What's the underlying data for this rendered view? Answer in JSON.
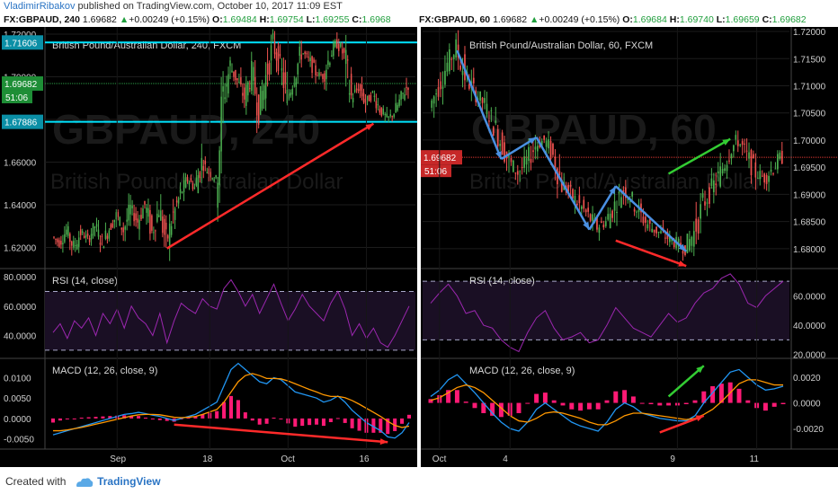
{
  "topbar": {
    "author": "VladimirRibakov",
    "published_text": " published on TradingView.com, October 10, 2017 11:09 EST"
  },
  "footer": {
    "created_with": "Created with",
    "brand": "TradingView"
  },
  "colors": {
    "up_candle": "#4caf50",
    "down_candle": "#ef5350",
    "accent_cyan": "#00e5ff",
    "rsi_line": "#9c27b0",
    "macd_line": "#2196f3",
    "signal_line": "#ff9800",
    "hist_color": "#ff1a75",
    "price_label_red": "#e53935",
    "arrow_red": "#ff2a2a",
    "arrow_green": "#33cc33",
    "arrow_blue": "#4a90e2"
  },
  "left_header": {
    "symbol": "FX:GBPAUD, 240",
    "last": "1.69682",
    "up_arrow": "▲",
    "change": "+0.00249 (+0.15%)",
    "o_label": "O:",
    "o_value": "1.69484",
    "h_label": "H:",
    "h_value": "1.69754",
    "l_label": "L:",
    "l_value": "1.69255",
    "c_label": "C:",
    "c_value": "1.6968"
  },
  "right_header": {
    "symbol": "FX:GBPAUD, 60",
    "last": "1.69682",
    "up_arrow": "▲",
    "change": "+0.00249 (+0.15%)",
    "o_label": "O:",
    "o_value": "1.69684",
    "h_label": "H:",
    "h_value": "1.69740",
    "l_label": "L:",
    "l_value": "1.69659",
    "c_label": "C:",
    "c_value": "1.69682"
  },
  "chart_data": [
    {
      "type": "candlestick",
      "title": "British Pound/Australian Dollar, 240, FXCM",
      "watermark": "GBPAUD, 240",
      "watermark_sub": "British Pound/Australian Dollar",
      "price_axis_ticks": [
        "1.72000",
        "1.70000",
        "1.68000",
        "1.66000",
        "1.64000",
        "1.62000"
      ],
      "ylim": [
        1.6105,
        1.7225
      ],
      "x_ticks": [
        "Sep",
        "18",
        "Oct",
        "16"
      ],
      "horizontal_levels": [
        {
          "value": 1.71606,
          "label": "1.71606",
          "color": "#00e5ff"
        },
        {
          "value": 1.67886,
          "label": "1.67886",
          "color": "#00e5ff"
        }
      ],
      "last_price": {
        "value": 1.69682,
        "label": "1.69682",
        "countdown": "51:06"
      },
      "price_path": [
        1.625,
        1.622,
        1.628,
        1.62,
        1.627,
        1.624,
        1.63,
        1.622,
        1.629,
        1.635,
        1.628,
        1.638,
        1.632,
        1.64,
        1.627,
        1.638,
        1.622,
        1.635,
        1.645,
        1.652,
        1.648,
        1.66,
        1.655,
        1.652,
        1.69,
        1.705,
        1.698,
        1.69,
        1.702,
        1.685,
        1.7,
        1.715,
        1.705,
        1.69,
        1.7,
        1.712,
        1.708,
        1.702,
        1.7,
        1.71,
        1.716,
        1.71,
        1.69,
        1.695,
        1.688,
        1.692,
        1.685,
        1.68,
        1.683,
        1.69,
        1.697
      ],
      "rsi": {
        "label": "RSI (14, close)",
        "ticks": [
          "80.0000",
          "60.0000",
          "40.0000"
        ],
        "ylim": [
          25,
          85
        ],
        "bands": [
          70,
          30
        ],
        "values": [
          42,
          48,
          38,
          50,
          45,
          52,
          40,
          55,
          48,
          58,
          45,
          60,
          52,
          48,
          40,
          55,
          35,
          50,
          62,
          58,
          55,
          65,
          60,
          58,
          72,
          78,
          70,
          60,
          68,
          55,
          65,
          75,
          62,
          50,
          58,
          68,
          60,
          55,
          50,
          62,
          70,
          58,
          40,
          48,
          38,
          45,
          35,
          32,
          40,
          50,
          60
        ]
      },
      "macd": {
        "label": "MACD (12, 26, close, 9)",
        "ticks": [
          "0.0100",
          "0.0050",
          "0.0000",
          "-0.0050"
        ],
        "ylim": [
          -0.0075,
          0.0145
        ],
        "macd_values": [
          -0.004,
          -0.0035,
          -0.003,
          -0.0025,
          -0.002,
          -0.0015,
          -0.001,
          -0.0005,
          0.0,
          0.0005,
          0.001,
          0.0012,
          0.0015,
          0.0012,
          0.0008,
          0.0005,
          0.0,
          -0.0005,
          0.0,
          0.0005,
          0.001,
          0.002,
          0.003,
          0.004,
          0.008,
          0.012,
          0.0135,
          0.012,
          0.0105,
          0.009,
          0.0085,
          0.01,
          0.0095,
          0.008,
          0.0065,
          0.006,
          0.0055,
          0.005,
          0.004,
          0.0045,
          0.0055,
          0.004,
          0.002,
          0.0005,
          -0.001,
          -0.002,
          -0.003,
          -0.0045,
          -0.0048,
          -0.0035,
          -0.001
        ],
        "signal_values": [
          -0.003,
          -0.003,
          -0.0028,
          -0.0025,
          -0.0022,
          -0.0018,
          -0.0014,
          -0.001,
          -0.0006,
          -0.0002,
          0.0002,
          0.0006,
          0.0009,
          0.001,
          0.001,
          0.0009,
          0.0006,
          0.0003,
          0.0002,
          0.0003,
          0.0005,
          0.001,
          0.0016,
          0.0022,
          0.004,
          0.0065,
          0.009,
          0.0105,
          0.011,
          0.0105,
          0.0098,
          0.0098,
          0.0097,
          0.0092,
          0.0085,
          0.0078,
          0.0071,
          0.0065,
          0.0058,
          0.0054,
          0.0054,
          0.0051,
          0.0044,
          0.0035,
          0.0025,
          0.0015,
          0.0005,
          -0.0007,
          -0.0017,
          -0.0022,
          -0.0019
        ]
      },
      "annotations": [
        {
          "type": "arrow",
          "color": "#ff2a2a",
          "from": [
            16,
            1.6195
          ],
          "to": [
            45,
            1.678
          ]
        },
        {
          "type": "arrow",
          "color": "#ff2a2a",
          "pane": "macd",
          "from": [
            17,
            -0.0015
          ],
          "to": [
            47,
            -0.0058
          ]
        }
      ]
    },
    {
      "type": "candlestick",
      "title": "British Pound/Australian Dollar, 60, FXCM",
      "watermark": "GBPAUD, 60",
      "watermark_sub": "British Pound/Australian Dollar",
      "price_axis_ticks": [
        "1.72000",
        "1.71500",
        "1.71000",
        "1.70500",
        "1.70000",
        "1.69500",
        "1.69000",
        "1.68500",
        "1.68000"
      ],
      "ylim": [
        1.6765,
        1.7205
      ],
      "x_ticks": [
        "Oct",
        "4",
        "9",
        "11"
      ],
      "last_price": {
        "value": 1.69682,
        "label": "1.69682",
        "countdown": "51:06"
      },
      "price_path": [
        1.706,
        1.71,
        1.714,
        1.717,
        1.712,
        1.709,
        1.707,
        1.704,
        1.7,
        1.696,
        1.694,
        1.696,
        1.699,
        1.7,
        1.697,
        1.692,
        1.69,
        1.688,
        1.686,
        1.684,
        1.685,
        1.688,
        1.691,
        1.689,
        1.686,
        1.684,
        1.683,
        1.682,
        1.681,
        1.68,
        1.683,
        1.688,
        1.691,
        1.694,
        1.698,
        1.7,
        1.697,
        1.694,
        1.693,
        1.695,
        1.697
      ],
      "rsi": {
        "label": "RSI (14, close)",
        "ticks": [
          "60.0000",
          "40.0000",
          "20.0000"
        ],
        "ylim": [
          18,
          78
        ],
        "bands": [
          70,
          30
        ],
        "values": [
          55,
          62,
          68,
          60,
          48,
          50,
          40,
          38,
          30,
          25,
          22,
          35,
          45,
          50,
          38,
          30,
          32,
          35,
          28,
          30,
          40,
          52,
          45,
          38,
          35,
          32,
          40,
          48,
          42,
          45,
          55,
          62,
          65,
          72,
          75,
          68,
          55,
          52,
          60,
          65,
          70
        ]
      },
      "macd": {
        "label": "MACD (12, 26, close, 9)",
        "ticks": [
          "0.0020",
          "0.0000",
          "-0.0020"
        ],
        "ylim": [
          -0.0036,
          0.0034
        ],
        "macd_values": [
          0.0005,
          0.001,
          0.0018,
          0.0022,
          0.0015,
          0.0008,
          0.0,
          -0.0008,
          -0.0015,
          -0.002,
          -0.0022,
          -0.0015,
          -0.0005,
          0.0,
          -0.0005,
          -0.001,
          -0.0015,
          -0.0018,
          -0.002,
          -0.0022,
          -0.0015,
          -0.0005,
          0.0,
          -0.0003,
          -0.0008,
          -0.001,
          -0.0012,
          -0.0013,
          -0.0014,
          -0.0014,
          -0.001,
          0.0,
          0.0008,
          0.0016,
          0.0024,
          0.0026,
          0.002,
          0.0014,
          0.001,
          0.0011,
          0.0013
        ],
        "signal_values": [
          0.0002,
          0.0004,
          0.0008,
          0.0012,
          0.0014,
          0.0012,
          0.0008,
          0.0002,
          -0.0004,
          -0.001,
          -0.0014,
          -0.0015,
          -0.0012,
          -0.0008,
          -0.0007,
          -0.0008,
          -0.001,
          -0.0012,
          -0.0015,
          -0.0017,
          -0.0017,
          -0.0014,
          -0.001,
          -0.0008,
          -0.0008,
          -0.0009,
          -0.001,
          -0.0011,
          -0.0012,
          -0.0013,
          -0.0012,
          -0.0009,
          -0.0005,
          0.0001,
          0.0008,
          0.0015,
          0.0018,
          0.0018,
          0.0016,
          0.0014,
          0.0014
        ]
      },
      "annotations": [
        {
          "type": "arrow",
          "color": "#4a90e2",
          "from": [
            3,
            1.7165
          ],
          "to": [
            8,
            1.6965
          ]
        },
        {
          "type": "arrow",
          "color": "#4a90e2",
          "from": [
            8,
            1.6965
          ],
          "to": [
            12,
            1.7005
          ]
        },
        {
          "type": "arrow",
          "color": "#4a90e2",
          "from": [
            12,
            1.7005
          ],
          "to": [
            18,
            1.6835
          ]
        },
        {
          "type": "arrow",
          "color": "#4a90e2",
          "from": [
            18,
            1.6835
          ],
          "to": [
            21,
            1.6915
          ]
        },
        {
          "type": "arrow",
          "color": "#4a90e2",
          "from": [
            21,
            1.6915
          ],
          "to": [
            29,
            1.6795
          ]
        },
        {
          "type": "arrow",
          "color": "#ff2a2a",
          "from": [
            21,
            1.6815
          ],
          "to": [
            29,
            1.6768
          ]
        },
        {
          "type": "arrow",
          "color": "#33cc33",
          "from": [
            27,
            1.6938
          ],
          "to": [
            34,
            1.7002
          ]
        },
        {
          "type": "arrow",
          "color": "#33cc33",
          "pane": "macd",
          "from": [
            27,
            0.0005
          ],
          "to": [
            31,
            0.0029
          ]
        },
        {
          "type": "arrow",
          "color": "#ff2a2a",
          "pane": "macd",
          "from": [
            26,
            -0.0023
          ],
          "to": [
            31,
            -0.001
          ]
        }
      ]
    }
  ]
}
